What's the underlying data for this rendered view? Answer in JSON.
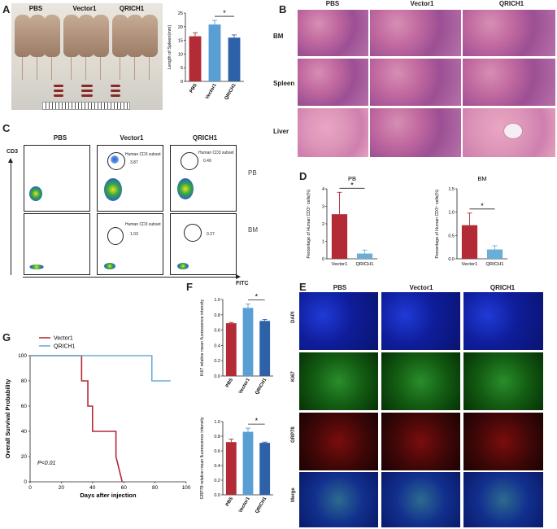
{
  "panels": {
    "A": "A",
    "B": "B",
    "C": "C",
    "D": "D",
    "E": "E",
    "F": "F",
    "G": "G"
  },
  "groups": {
    "pbs": "PBS",
    "vector1": "Vector1",
    "qrich1": "QRICH1"
  },
  "panel_b": {
    "rows": [
      "BM",
      "Spleen",
      "Liver"
    ]
  },
  "panel_c": {
    "y_axis": "CD3",
    "x_axis": "FITC",
    "rows": [
      "PB",
      "BM"
    ],
    "gate_label": "Human CD3 subset",
    "pb_values": [
      "3.87",
      "0.49"
    ],
    "bm_values": [
      "1.03",
      "0.27"
    ]
  },
  "panel_d_titles": {
    "pb": "PB",
    "bm": "BM"
  },
  "panel_e": {
    "rows": [
      "DAPI",
      "Ki67",
      "GRP78",
      "Merge"
    ]
  },
  "colors": {
    "pbs": "#b22b36",
    "vector1": "#5a9fd4",
    "qrich1": "#2e62a8",
    "qrich1_light": "#6aaed6"
  },
  "chart_data": [
    {
      "type": "bar",
      "panel": "A",
      "categories": [
        "PBS",
        "Vector1",
        "QRICH1"
      ],
      "values": [
        16.5,
        20.8,
        16.0
      ],
      "errors": [
        1.3,
        1.5,
        1.0
      ],
      "ylabel": "Length of Spleen(mm)",
      "ylim": [
        0,
        25
      ],
      "yticks": [
        "0",
        "5",
        "10",
        "15",
        "20",
        "25"
      ],
      "significance": {
        "between": [
          1,
          2
        ],
        "label": "*"
      }
    },
    {
      "type": "bar",
      "panel": "D-PB",
      "title": "PB",
      "categories": [
        "Vector1",
        "QRICH1"
      ],
      "values": [
        2.55,
        0.3
      ],
      "errors": [
        1.25,
        0.2
      ],
      "ylabel": "Percentage of Human CD3⁺ cells(%)",
      "ylim": [
        0,
        4
      ],
      "yticks": [
        "0",
        "1",
        "2",
        "3",
        "4"
      ],
      "significance": {
        "between": [
          0,
          1
        ],
        "label": "*"
      }
    },
    {
      "type": "bar",
      "panel": "D-BM",
      "title": "BM",
      "categories": [
        "Vector1",
        "QRICH1"
      ],
      "values": [
        0.72,
        0.2
      ],
      "errors": [
        0.26,
        0.08
      ],
      "ylabel": "Percentage of Human CD3⁺ cells(%)",
      "ylim": [
        0,
        1.5
      ],
      "yticks": [
        "0.0",
        "0.5",
        "1.0",
        "1.5"
      ],
      "significance": {
        "between": [
          0,
          1
        ],
        "label": "*"
      }
    },
    {
      "type": "bar",
      "panel": "F-Ki67",
      "categories": [
        "PBS",
        "Vector1",
        "QRICH1"
      ],
      "values": [
        0.69,
        0.89,
        0.72
      ],
      "errors": [
        0.01,
        0.05,
        0.02
      ],
      "ylabel": "Ki67 relative mean fluorescence intensity",
      "ylim": [
        0.0,
        1.0
      ],
      "yticks": [
        "0.0",
        "0.2",
        "0.4",
        "0.6",
        "0.8",
        "1.0"
      ],
      "significance": {
        "between": [
          1,
          2
        ],
        "label": "*"
      }
    },
    {
      "type": "bar",
      "panel": "F-GRP78",
      "categories": [
        "PBS",
        "Vector1",
        "QRICH1"
      ],
      "values": [
        0.72,
        0.86,
        0.71
      ],
      "errors": [
        0.04,
        0.05,
        0.01
      ],
      "ylabel": "GRP78 relative mean fluorescence intensity",
      "ylim": [
        0.0,
        1.0
      ],
      "yticks": [
        "0.0",
        "0.2",
        "0.4",
        "0.6",
        "0.8",
        "1.0"
      ],
      "significance": {
        "between": [
          1,
          2
        ],
        "label": "*"
      }
    },
    {
      "type": "line",
      "panel": "G",
      "step": true,
      "xlabel": "Days after injection",
      "ylabel": "Overall Survival Probability",
      "xlim": [
        0,
        100
      ],
      "ylim": [
        0,
        100
      ],
      "xticks": [
        "0",
        "20",
        "40",
        "60",
        "80",
        "100"
      ],
      "yticks": [
        "0",
        "20",
        "40",
        "60",
        "80",
        "100"
      ],
      "series": [
        {
          "name": "Vector1",
          "x": [
            0,
            33,
            33,
            37,
            37,
            40,
            40,
            55,
            55,
            59
          ],
          "y": [
            100,
            100,
            80,
            80,
            60,
            60,
            40,
            40,
            20,
            0
          ]
        },
        {
          "name": "QRICH1",
          "x": [
            0,
            78,
            78,
            90
          ],
          "y": [
            100,
            100,
            80,
            80
          ]
        }
      ],
      "annotation": "P<0.01"
    }
  ]
}
